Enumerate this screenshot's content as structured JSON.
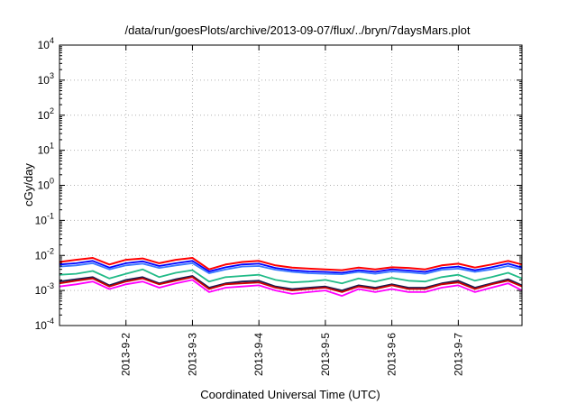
{
  "chart_data": {
    "type": "line",
    "title": "/data/run/goesPlots/archive/2013-09-07/flux/../bryn/7daysMars.plot",
    "xlabel": "Coordinated Universal Time (UTC)",
    "ylabel": "cGy/day",
    "yscale": "log",
    "ylim": [
      0.0001,
      10000
    ],
    "xlim": [
      "2013-09-01T00:00",
      "2013-09-07T23:00"
    ],
    "grid": true,
    "x_ticks": [
      "2013-9-2",
      "2013-9-3",
      "2013-9-4",
      "2013-9-5",
      "2013-9-6",
      "2013-9-7"
    ],
    "y_ticks": [
      {
        "base": "10",
        "exp": "-4"
      },
      {
        "base": "10",
        "exp": "-3"
      },
      {
        "base": "10",
        "exp": "-2"
      },
      {
        "base": "10",
        "exp": "-1"
      },
      {
        "base": "10",
        "exp": "0"
      },
      {
        "base": "10",
        "exp": "1"
      },
      {
        "base": "10",
        "exp": "2"
      },
      {
        "base": "10",
        "exp": "3"
      },
      {
        "base": "10",
        "exp": "4"
      }
    ],
    "x": [
      "2013-09-01T00:00",
      "2013-09-01T06:00",
      "2013-09-01T12:00",
      "2013-09-01T18:00",
      "2013-09-02T00:00",
      "2013-09-02T06:00",
      "2013-09-02T12:00",
      "2013-09-02T18:00",
      "2013-09-03T00:00",
      "2013-09-03T06:00",
      "2013-09-03T12:00",
      "2013-09-03T18:00",
      "2013-09-04T00:00",
      "2013-09-04T06:00",
      "2013-09-04T12:00",
      "2013-09-04T18:00",
      "2013-09-05T00:00",
      "2013-09-05T06:00",
      "2013-09-05T12:00",
      "2013-09-05T18:00",
      "2013-09-06T00:00",
      "2013-09-06T06:00",
      "2013-09-06T12:00",
      "2013-09-06T18:00",
      "2013-09-07T00:00",
      "2013-09-07T06:00",
      "2013-09-07T12:00",
      "2013-09-07T18:00",
      "2013-09-07T23:00"
    ],
    "series": [
      {
        "color": "#ff0000",
        "values": [
          0.0065,
          0.0075,
          0.0085,
          0.0055,
          0.0075,
          0.0082,
          0.006,
          0.0075,
          0.0085,
          0.004,
          0.0055,
          0.0065,
          0.007,
          0.0052,
          0.0045,
          0.0042,
          0.004,
          0.0038,
          0.0045,
          0.004,
          0.0046,
          0.0044,
          0.004,
          0.0052,
          0.0058,
          0.0045,
          0.0055,
          0.007,
          0.0055
        ]
      },
      {
        "color": "#0000ff",
        "values": [
          0.0055,
          0.006,
          0.007,
          0.0045,
          0.006,
          0.0068,
          0.005,
          0.006,
          0.007,
          0.0035,
          0.0046,
          0.0055,
          0.0058,
          0.0044,
          0.0038,
          0.0035,
          0.0034,
          0.0032,
          0.0038,
          0.0034,
          0.004,
          0.0037,
          0.0034,
          0.0044,
          0.0048,
          0.0038,
          0.0046,
          0.0058,
          0.0045
        ]
      },
      {
        "color": "#3a78ff",
        "values": [
          0.0048,
          0.0052,
          0.006,
          0.004,
          0.0052,
          0.0058,
          0.0044,
          0.0052,
          0.006,
          0.0031,
          0.004,
          0.0048,
          0.005,
          0.0039,
          0.0034,
          0.0031,
          0.003,
          0.0029,
          0.0034,
          0.003,
          0.0035,
          0.0033,
          0.003,
          0.0039,
          0.0042,
          0.0034,
          0.004,
          0.005,
          0.004
        ]
      },
      {
        "color": "#22bb88",
        "values": [
          0.0028,
          0.003,
          0.0036,
          0.0022,
          0.003,
          0.004,
          0.0024,
          0.0032,
          0.0038,
          0.0018,
          0.0024,
          0.0026,
          0.0028,
          0.002,
          0.0017,
          0.0018,
          0.002,
          0.0016,
          0.0022,
          0.0018,
          0.0023,
          0.0019,
          0.0018,
          0.0024,
          0.0028,
          0.0019,
          0.0024,
          0.0032,
          0.0022
        ]
      },
      {
        "color": "#1a1a50",
        "values": [
          0.0018,
          0.0021,
          0.0024,
          0.0014,
          0.002,
          0.0024,
          0.0016,
          0.0021,
          0.0026,
          0.0012,
          0.0016,
          0.0018,
          0.0019,
          0.0013,
          0.0011,
          0.0012,
          0.0013,
          0.001,
          0.0014,
          0.0012,
          0.0015,
          0.0012,
          0.0012,
          0.0016,
          0.0019,
          0.0012,
          0.0016,
          0.0021,
          0.0014
        ]
      },
      {
        "color": "#cc0000",
        "values": [
          0.0016,
          0.0019,
          0.0022,
          0.0013,
          0.0018,
          0.0022,
          0.0015,
          0.0019,
          0.0024,
          0.0011,
          0.0015,
          0.0016,
          0.0017,
          0.0012,
          0.001,
          0.0011,
          0.0012,
          0.0009,
          0.0013,
          0.0011,
          0.0014,
          0.0011,
          0.0011,
          0.0015,
          0.0017,
          0.0011,
          0.0015,
          0.0019,
          0.0013
        ]
      },
      {
        "color": "#ff00ff",
        "values": [
          0.0013,
          0.0015,
          0.0018,
          0.0011,
          0.0015,
          0.0018,
          0.0012,
          0.0016,
          0.002,
          0.0009,
          0.0012,
          0.0013,
          0.0014,
          0.001,
          0.0008,
          0.0009,
          0.001,
          0.0007,
          0.0011,
          0.0009,
          0.0011,
          0.0009,
          0.0009,
          0.0012,
          0.0014,
          0.0009,
          0.0012,
          0.0016,
          0.001
        ]
      }
    ]
  }
}
